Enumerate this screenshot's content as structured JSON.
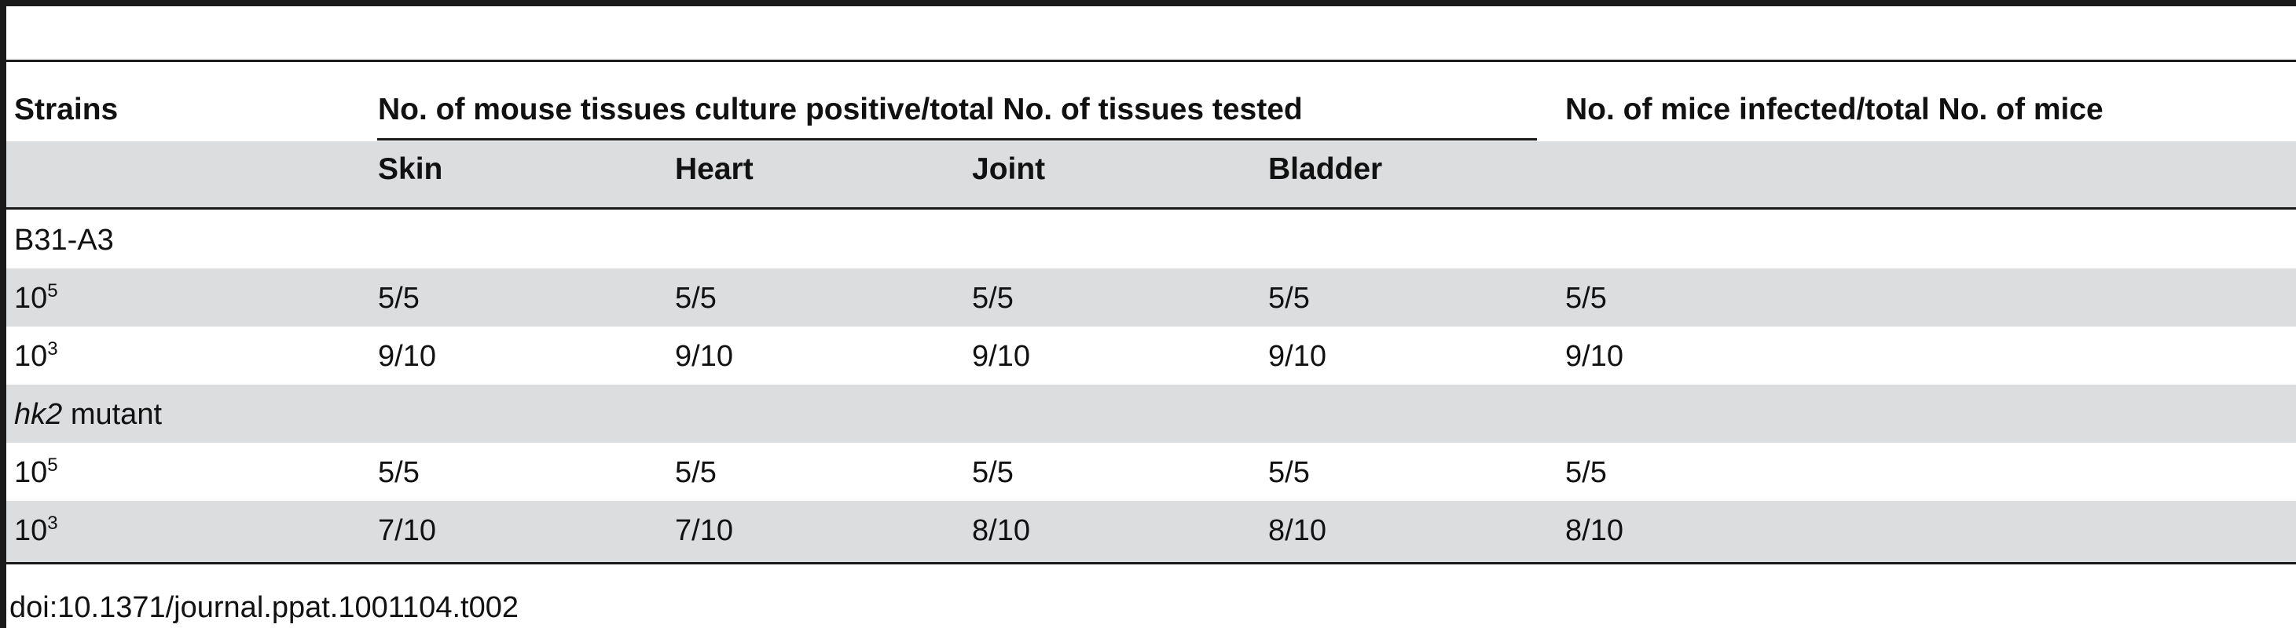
{
  "table": {
    "headers": {
      "strains": "Strains",
      "tissues_group": "No. of mouse tissues culture positive/total No. of tissues tested",
      "mice_group": "No. of mice infected/total No. of mice",
      "tissues": [
        "Skin",
        "Heart",
        "Joint",
        "Bladder"
      ]
    },
    "groups": [
      {
        "label": "B31-A3",
        "label_italic": "",
        "label_suffix": "",
        "rows": [
          {
            "base": "10",
            "exp": "5",
            "skin": "5/5",
            "heart": "5/5",
            "joint": "5/5",
            "bladder": "5/5",
            "mice": "5/5"
          },
          {
            "base": "10",
            "exp": "3",
            "skin": "9/10",
            "heart": "9/10",
            "joint": "9/10",
            "bladder": "9/10",
            "mice": "9/10"
          }
        ]
      },
      {
        "label": "",
        "label_italic": "hk2",
        "label_suffix": " mutant",
        "rows": [
          {
            "base": "10",
            "exp": "5",
            "skin": "5/5",
            "heart": "5/5",
            "joint": "5/5",
            "bladder": "5/5",
            "mice": "5/5"
          },
          {
            "base": "10",
            "exp": "3",
            "skin": "7/10",
            "heart": "7/10",
            "joint": "8/10",
            "bladder": "8/10",
            "mice": "8/10"
          }
        ]
      }
    ],
    "doi": "doi:10.1371/journal.ppat.1001104.t002"
  }
}
